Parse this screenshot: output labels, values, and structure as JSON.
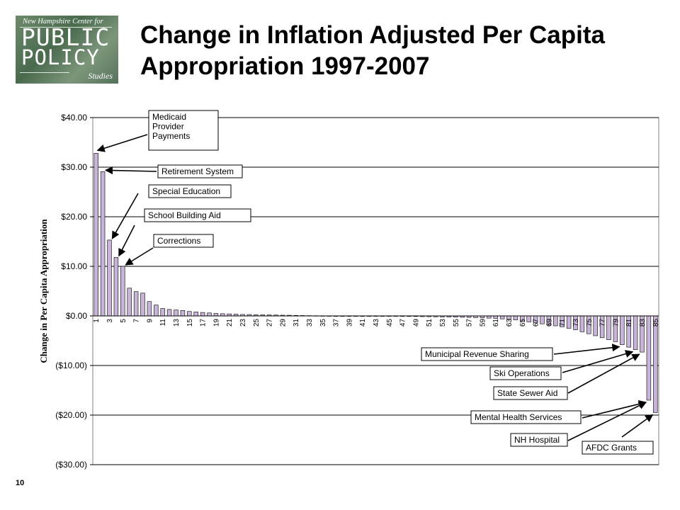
{
  "slide": {
    "title": "Change in Inflation Adjusted Per Capita Appropriation 1997-2007",
    "page_number": "10",
    "logo": {
      "line1": "New Hampshire Center for",
      "line2": "PUBLIC",
      "line3": "POLICY",
      "line4": "Studies"
    }
  },
  "chart_data": {
    "type": "bar",
    "ylabel": "Change in Per Capita Appropriation",
    "xlabel": "",
    "ylim": [
      -30,
      40
    ],
    "y_ticks": [
      "$40.00",
      "$30.00",
      "$20.00",
      "$10.00",
      "$0.00",
      "($10.00)",
      "($20.00)",
      "($30.00)"
    ],
    "grid": true,
    "bar_color": "#c8b4d8",
    "categories": [
      "1",
      "2",
      "3",
      "4",
      "5",
      "6",
      "7",
      "8",
      "9",
      "10",
      "11",
      "12",
      "13",
      "14",
      "15",
      "16",
      "17",
      "18",
      "19",
      "20",
      "21",
      "22",
      "23",
      "24",
      "25",
      "26",
      "27",
      "28",
      "29",
      "30",
      "31",
      "32",
      "33",
      "34",
      "35",
      "36",
      "37",
      "38",
      "39",
      "40",
      "41",
      "42",
      "43",
      "44",
      "45",
      "46",
      "47",
      "48",
      "49",
      "50",
      "51",
      "52",
      "53",
      "54",
      "55",
      "56",
      "57",
      "58",
      "59",
      "60",
      "61",
      "62",
      "63",
      "64",
      "65",
      "66",
      "67",
      "68",
      "69",
      "70",
      "71",
      "72",
      "73",
      "74",
      "75",
      "76",
      "77",
      "78",
      "79",
      "80",
      "81",
      "82",
      "83",
      "84",
      "85"
    ],
    "x_tick_labels": [
      "1",
      "3",
      "5",
      "7",
      "9",
      "11",
      "13",
      "15",
      "17",
      "19",
      "21",
      "23",
      "25",
      "27",
      "29",
      "31",
      "33",
      "35",
      "37",
      "39",
      "41",
      "43",
      "45",
      "47",
      "49",
      "51",
      "53",
      "55",
      "57",
      "59",
      "61",
      "63",
      "65",
      "67",
      "69",
      "71",
      "73",
      "75",
      "77",
      "79",
      "81",
      "83",
      "85"
    ],
    "values": [
      32.8,
      29.1,
      15.3,
      11.8,
      10.0,
      5.6,
      4.9,
      4.6,
      2.9,
      2.2,
      1.5,
      1.3,
      1.2,
      1.1,
      0.9,
      0.8,
      0.7,
      0.6,
      0.5,
      0.45,
      0.4,
      0.35,
      0.3,
      0.28,
      0.25,
      0.22,
      0.2,
      0.18,
      0.15,
      0.13,
      0.1,
      0.08,
      0.06,
      0.04,
      0.02,
      0.01,
      0.0,
      0.0,
      -0.01,
      -0.02,
      -0.03,
      -0.04,
      -0.05,
      -0.06,
      -0.07,
      -0.08,
      -0.09,
      -0.1,
      -0.12,
      -0.14,
      -0.16,
      -0.18,
      -0.2,
      -0.22,
      -0.25,
      -0.28,
      -0.3,
      -0.35,
      -0.4,
      -0.45,
      -0.5,
      -0.6,
      -0.7,
      -0.8,
      -1.0,
      -1.2,
      -1.4,
      -1.6,
      -1.8,
      -2.0,
      -2.2,
      -2.5,
      -2.8,
      -3.2,
      -3.6,
      -4.0,
      -4.4,
      -4.8,
      -5.2,
      -5.8,
      -6.3,
      -6.8,
      -7.3,
      -17.0,
      -19.5
    ],
    "annotations": [
      {
        "text": "Medicaid Provider Payments",
        "lines": [
          "Medicaid",
          "Provider",
          "Payments"
        ],
        "target_bar": 1
      },
      {
        "text": "Retirement System",
        "lines": [
          "Retirement System"
        ],
        "target_bar": 2
      },
      {
        "text": "Special Education",
        "lines": [
          "Special Education"
        ],
        "target_bar": 3
      },
      {
        "text": "School Building Aid",
        "lines": [
          "School Building Aid"
        ],
        "target_bar": 4
      },
      {
        "text": "Corrections",
        "lines": [
          "Corrections"
        ],
        "target_bar": 5
      },
      {
        "text": "Municipal Revenue Sharing",
        "lines": [
          "Municipal Revenue Sharing"
        ],
        "target_bar": 80
      },
      {
        "text": "Ski Operations",
        "lines": [
          "Ski Operations"
        ],
        "target_bar": 82
      },
      {
        "text": "State Sewer Aid",
        "lines": [
          "State Sewer Aid"
        ],
        "target_bar": 83
      },
      {
        "text": "Mental Health Services",
        "lines": [
          "Mental Health Services"
        ],
        "target_bar": 84
      },
      {
        "text": "NH Hospital",
        "lines": [
          "NH Hospital"
        ],
        "target_bar": 84
      },
      {
        "text": "AFDC Grants",
        "lines": [
          "AFDC Grants"
        ],
        "target_bar": 85
      }
    ]
  }
}
